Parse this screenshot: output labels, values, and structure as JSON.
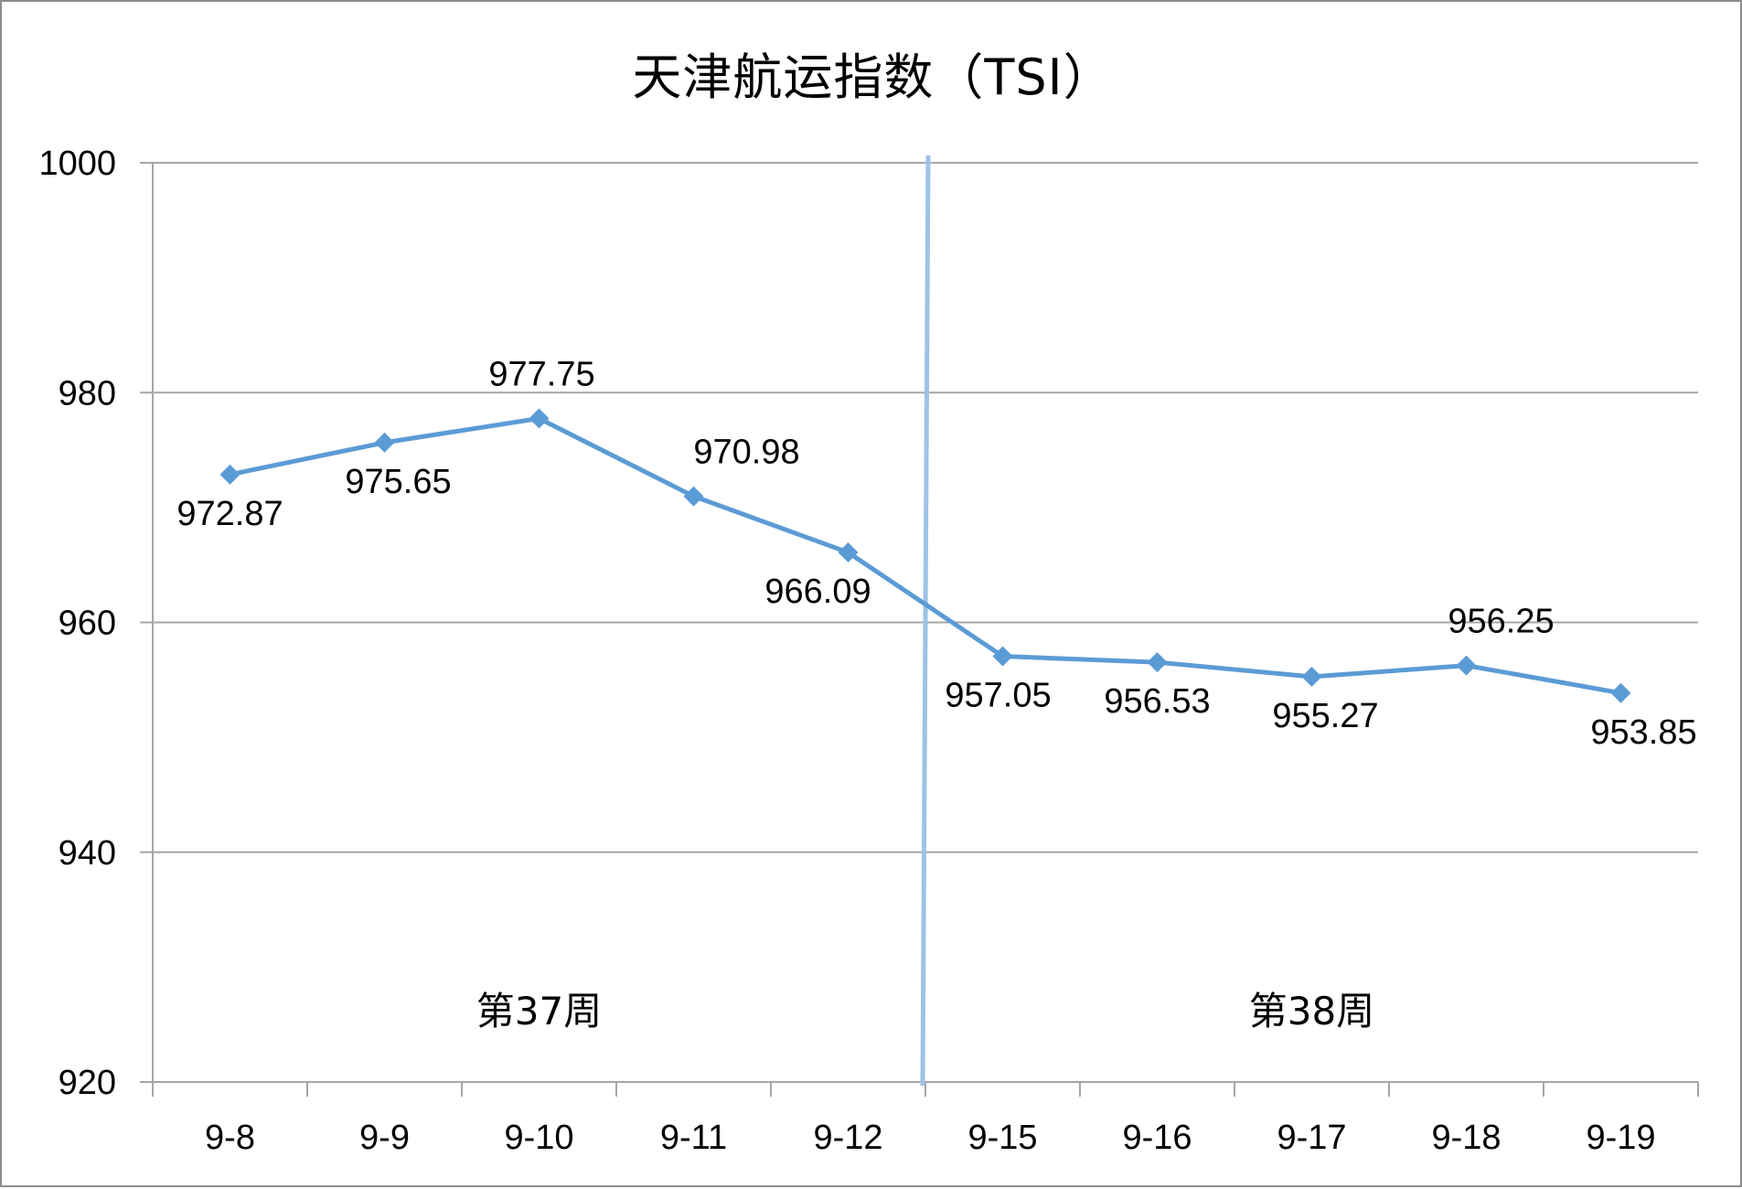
{
  "chart_data": {
    "type": "line",
    "title": "天津航运指数（TSI）",
    "xlabel": "",
    "ylabel": "",
    "categories": [
      "9-8",
      "9-9",
      "9-10",
      "9-11",
      "9-12",
      "9-15",
      "9-16",
      "9-17",
      "9-18",
      "9-19"
    ],
    "series": [
      {
        "values": [
          972.87,
          975.65,
          977.75,
          970.98,
          966.09,
          957.05,
          956.53,
          955.27,
          956.25,
          953.85
        ],
        "color": "#5b9bd5",
        "marker": "diamond"
      }
    ],
    "data_labels": [
      "972.87",
      "975.65",
      "977.75",
      "970.98",
      "966.09",
      "957.05",
      "956.53",
      "955.27",
      "956.25",
      "953.85"
    ],
    "ylim": [
      920,
      1000
    ],
    "yticks": [
      920,
      940,
      960,
      980,
      1000
    ],
    "ytick_labels": [
      "920",
      "940",
      "960",
      "980",
      "1000"
    ],
    "grid": true,
    "legend": "none",
    "annotations": [
      {
        "text": "第37周",
        "position": "below-center"
      },
      {
        "text": "第38周",
        "position": "below-center"
      }
    ],
    "divider": {
      "between": [
        "9-12",
        "9-15"
      ],
      "color": "#9dc3e6"
    },
    "gridline_color": "#a6a6a6",
    "axis_color": "#a6a6a6"
  }
}
